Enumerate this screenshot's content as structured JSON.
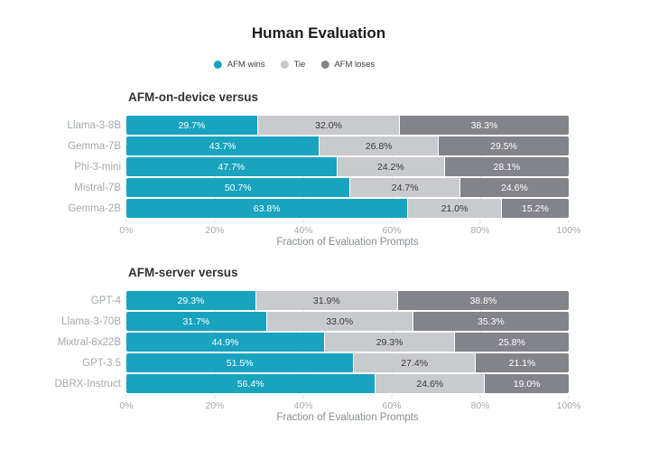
{
  "title": "Human Evaluation",
  "legend": {
    "position": "top-center",
    "items": [
      {
        "label": "AFM wins",
        "color": "#18A3BF"
      },
      {
        "label": "Tie",
        "color": "#C9CACE"
      },
      {
        "label": "AFM loses",
        "color": "#83838A"
      }
    ]
  },
  "colors": {
    "win-color": "#18A3BF",
    "tie-color": "#C9CACE",
    "lose-color": "#83838A",
    "tie-text": "#3B3B3E",
    "title-text": "#1D1D1F",
    "section-text": "#333336",
    "legend-text": "#3C3C3E",
    "category-text": "#A5A9AD",
    "tick-text": "#A5A9AD",
    "axis-title-text": "#878D92",
    "gridline": "#E7E8EA",
    "tickmark": "#D8DADC"
  },
  "chart_data": [
    {
      "type": "bar",
      "orientation": "horizontal",
      "stacked": true,
      "title": "AFM-on-device versus",
      "categories": [
        "Llama-3-8B",
        "Gemma-7B",
        "Phi-3-mini",
        "Mistral-7B",
        "Gemma-2B"
      ],
      "series": [
        {
          "name": "AFM wins",
          "values": [
            29.7,
            43.7,
            47.7,
            50.7,
            63.8
          ]
        },
        {
          "name": "Tie",
          "values": [
            32.0,
            26.8,
            24.2,
            24.7,
            21.0
          ]
        },
        {
          "name": "AFM loses",
          "values": [
            38.3,
            29.5,
            28.1,
            24.6,
            15.2
          ]
        }
      ],
      "xlabel": "Fraction of Evaluation Prompts",
      "xlim": [
        0,
        100
      ],
      "x_ticks": [
        "0%",
        "20%",
        "40%",
        "60%",
        "80%",
        "100%"
      ],
      "value_label_format": "0.0%",
      "grid": true,
      "legend_position": "top-center"
    },
    {
      "type": "bar",
      "orientation": "horizontal",
      "stacked": true,
      "title": "AFM-server versus",
      "categories": [
        "GPT-4",
        "Llama-3-70B",
        "Mixtral-8x22B",
        "GPT-3.5",
        "DBRX-Instruct"
      ],
      "series": [
        {
          "name": "AFM wins",
          "values": [
            29.3,
            31.7,
            44.9,
            51.5,
            56.4
          ]
        },
        {
          "name": "Tie",
          "values": [
            31.9,
            33.0,
            29.3,
            27.4,
            24.6
          ]
        },
        {
          "name": "AFM loses",
          "values": [
            38.8,
            35.3,
            25.8,
            21.1,
            19.0
          ]
        }
      ],
      "xlabel": "Fraction of Evaluation Prompts",
      "xlim": [
        0,
        100
      ],
      "x_ticks": [
        "0%",
        "20%",
        "40%",
        "60%",
        "80%",
        "100%"
      ],
      "value_label_format": "0.0%",
      "grid": true,
      "legend_position": "top-center"
    }
  ]
}
